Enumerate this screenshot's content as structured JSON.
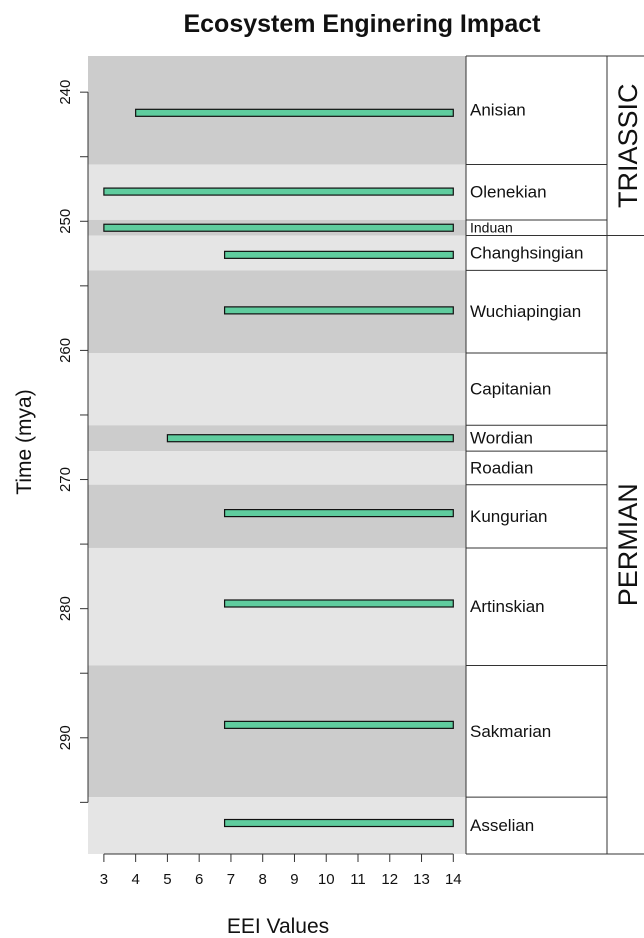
{
  "chart_data": {
    "type": "bar",
    "orientation": "horizontal-range",
    "title": "Ecosystem Enginering Impact",
    "xlabel": "EEI Values",
    "ylabel": "Time (mya)",
    "xlim": [
      2.5,
      14.4
    ],
    "ylim": [
      237.2,
      299.0
    ],
    "x_ticks": [
      3,
      4,
      5,
      6,
      7,
      8,
      9,
      10,
      11,
      12,
      13,
      14
    ],
    "y_ticks": [
      240,
      250,
      260,
      270,
      280,
      290
    ],
    "grid": false,
    "periods": [
      {
        "name": "TRIASSIC",
        "start": 237.2,
        "end": 251.1
      },
      {
        "name": "PERMIAN",
        "start": 251.1,
        "end": 299.0
      }
    ],
    "stages": [
      {
        "name": "Anisian",
        "start": 237.2,
        "end": 245.6,
        "shade": "dark"
      },
      {
        "name": "Olenekian",
        "start": 245.6,
        "end": 249.9,
        "shade": "light"
      },
      {
        "name": "Induan",
        "start": 249.9,
        "end": 251.1,
        "shade": "dark"
      },
      {
        "name": "Changhsingian",
        "start": 251.1,
        "end": 253.8,
        "shade": "light"
      },
      {
        "name": "Wuchiapingian",
        "start": 253.8,
        "end": 260.2,
        "shade": "dark"
      },
      {
        "name": "Capitanian",
        "start": 260.2,
        "end": 265.8,
        "shade": "light"
      },
      {
        "name": "Wordian",
        "start": 265.8,
        "end": 267.8,
        "shade": "dark"
      },
      {
        "name": "Roadian",
        "start": 267.8,
        "end": 270.4,
        "shade": "light"
      },
      {
        "name": "Kungurian",
        "start": 270.4,
        "end": 275.3,
        "shade": "dark"
      },
      {
        "name": "Artinskian",
        "start": 275.3,
        "end": 284.4,
        "shade": "light"
      },
      {
        "name": "Sakmarian",
        "start": 284.4,
        "end": 294.6,
        "shade": "dark"
      },
      {
        "name": "Asselian",
        "start": 294.6,
        "end": 299.0,
        "shade": "light"
      }
    ],
    "bars": [
      {
        "stage": "Anisian",
        "time": 241.6,
        "x_start": 4.0,
        "x_end": 14.0
      },
      {
        "stage": "Olenekian",
        "time": 247.7,
        "x_start": 3.0,
        "x_end": 14.0
      },
      {
        "stage": "Induan",
        "time": 250.5,
        "x_start": 3.0,
        "x_end": 14.0
      },
      {
        "stage": "Changhsingian",
        "time": 252.6,
        "x_start": 6.8,
        "x_end": 14.0
      },
      {
        "stage": "Wuchiapingian",
        "time": 256.9,
        "x_start": 6.8,
        "x_end": 14.0
      },
      {
        "stage": "Wordian",
        "time": 266.8,
        "x_start": 5.0,
        "x_end": 14.0
      },
      {
        "stage": "Kungurian",
        "time": 272.6,
        "x_start": 6.8,
        "x_end": 14.0
      },
      {
        "stage": "Artinskian",
        "time": 279.6,
        "x_start": 6.8,
        "x_end": 14.0
      },
      {
        "stage": "Sakmarian",
        "time": 289.0,
        "x_start": 6.8,
        "x_end": 14.0
      },
      {
        "stage": "Asselian",
        "time": 296.6,
        "x_start": 6.8,
        "x_end": 14.0
      }
    ],
    "colors": {
      "bar_fill": "#5fcc9e",
      "bar_stroke": "#111111",
      "band_dark": "#cccccc",
      "band_light": "#e5e5e5",
      "line": "#333333"
    }
  }
}
